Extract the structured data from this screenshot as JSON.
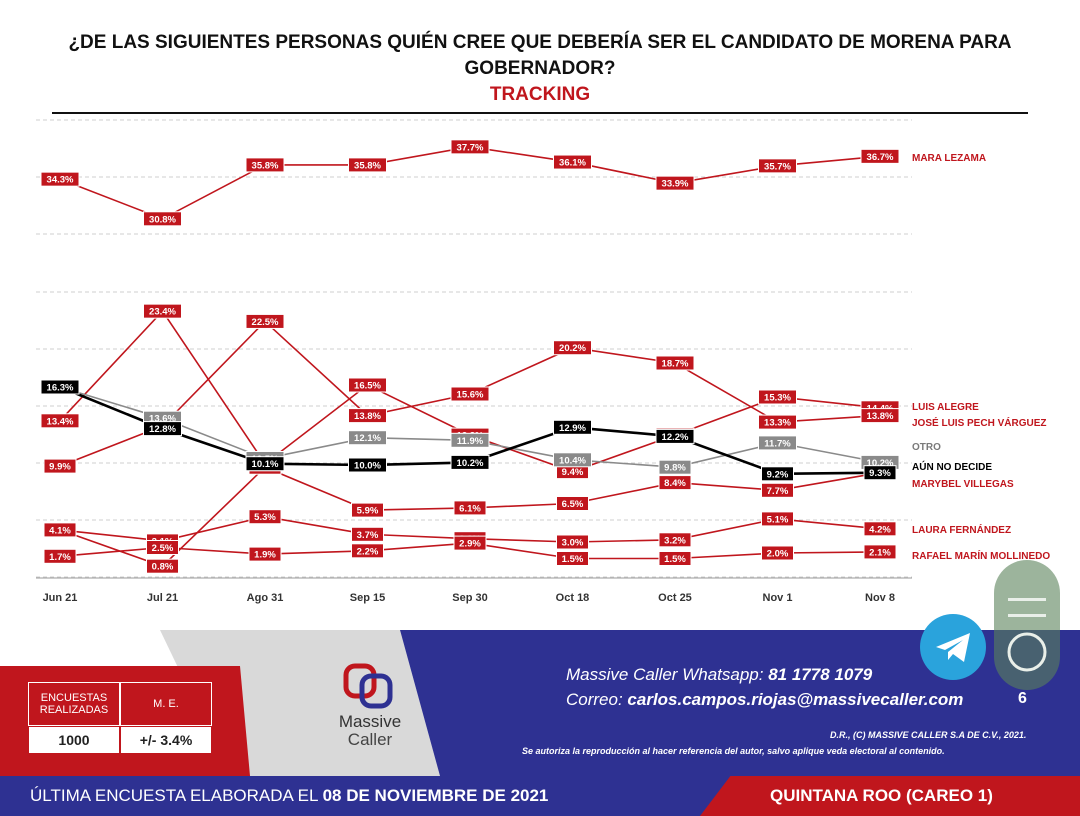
{
  "title_line1": "¿DE LAS SIGUIENTES PERSONAS QUIÉN CREE QUE DEBERÍA SER EL CANDIDATO DE MORENA PARA",
  "title_line2": "GOBERNADOR?",
  "subtitle": "TRACKING",
  "chart_data": {
    "type": "line",
    "categories": [
      "Jun 21",
      "Jul 21",
      "Ago 31",
      "Sep 15",
      "Sep 30",
      "Oct 18",
      "Oct 25",
      "Nov 1",
      "Nov 8"
    ],
    "series": [
      {
        "name": "MARA LEZAMA",
        "color": "#c0161d",
        "values": [
          34.3,
          30.8,
          35.8,
          35.8,
          37.7,
          36.1,
          33.9,
          35.7,
          36.7
        ],
        "labels": [
          "34.3%",
          "30.8%",
          "35.8%",
          "35.8%",
          "37.7%",
          "36.1%",
          "33.9%",
          "35.7%",
          "36.7%"
        ]
      },
      {
        "name": "LUIS ALEGRE",
        "color": "#c0161d",
        "values": [
          13.4,
          23.4,
          10.1,
          16.5,
          12.3,
          9.4,
          12.3,
          15.3,
          14.4
        ],
        "labels": [
          "13.4%",
          "23.4%",
          "10.1%",
          "16.5%",
          "12.3%",
          "9.4%",
          "12.3%",
          "15.3%",
          "14.4%"
        ]
      },
      {
        "name": "JOSÉ LUIS PECH VÁRGUEZ",
        "color": "#c0161d",
        "values": [
          9.9,
          13.0,
          22.5,
          13.8,
          15.6,
          20.2,
          18.7,
          13.3,
          13.8
        ],
        "labels": [
          "9.9%",
          "13.0%",
          "22.5%",
          "13.8%",
          "15.6%",
          "20.2%",
          "18.7%",
          "13.3%",
          "13.8%"
        ]
      },
      {
        "name": "OTRO",
        "color": "#8a8a8a",
        "values": [
          16.3,
          13.6,
          10.5,
          12.1,
          11.9,
          10.4,
          9.8,
          11.7,
          10.2
        ],
        "labels": [
          "16.3%",
          "13.6%",
          "10.5%",
          "12.1%",
          "11.9%",
          "10.4%",
          "9.8%",
          "11.7%",
          "10.2%"
        ]
      },
      {
        "name": "AÚN NO DECIDE",
        "color": "#000000",
        "values": [
          16.3,
          12.8,
          10.1,
          10.0,
          10.2,
          12.9,
          12.2,
          9.2,
          9.3
        ],
        "labels": [
          "16.3%",
          "12.8%",
          "10.1%",
          "10.0%",
          "10.2%",
          "12.9%",
          "12.2%",
          "9.2%",
          "9.3%"
        ]
      },
      {
        "name": "MARYBEL VILLEGAS",
        "color": "#c0161d",
        "values": [
          4.1,
          0.8,
          9.8,
          5.9,
          6.1,
          6.5,
          8.4,
          7.7,
          9.3
        ],
        "labels": [
          "4.1%",
          "0.8%",
          "9.8%",
          "5.9%",
          "6.1%",
          "6.5%",
          "8.4%",
          "7.7%",
          "9.3%"
        ]
      },
      {
        "name": "LAURA FERNÁNDEZ",
        "color": "#c0161d",
        "values": [
          4.1,
          3.1,
          5.3,
          3.7,
          3.3,
          3.0,
          3.2,
          5.1,
          4.2
        ],
        "labels": [
          "4.1%",
          "3.1%",
          "5.3%",
          "3.7%",
          "3.3%",
          "3.0%",
          "3.2%",
          "5.1%",
          "4.2%"
        ]
      },
      {
        "name": "RAFAEL MARÍN MOLLINEDO",
        "color": "#c0161d",
        "values": [
          1.7,
          2.5,
          1.9,
          2.2,
          2.9,
          1.5,
          1.5,
          2.0,
          2.1
        ],
        "labels": [
          "1.7%",
          "2.5%",
          "1.9%",
          "2.2%",
          "2.9%",
          "1.5%",
          "1.5%",
          "2.0%",
          "2.1%"
        ]
      }
    ],
    "grid": true,
    "legend": "right"
  },
  "footer": {
    "box_header_1": "ENCUESTAS REALIZADAS",
    "box_header_2": "M. E.",
    "box_value_1": "1000",
    "box_value_2": "+/- 3.4%",
    "logo_line1": "Massive",
    "logo_line2": "Caller",
    "whatsapp_label": "Massive Caller Whatsapp:",
    "whatsapp_number": "81 1778 1079",
    "email_label": "Correo:",
    "email": "carlos.campos.riojas@massivecaller.com",
    "page_number": "6",
    "copyright": "D.R., (C) MASSIVE CALLER S.A DE C.V., 2021.",
    "note": "Se autoriza la reproducción al hacer referencia del autor, salvo aplique veda electoral al contenido.",
    "last_survey_label": "ÚLTIMA ENCUESTA ELABORADA EL",
    "last_survey_date": "08 DE NOVIEMBRE DE 2021",
    "region": "QUINTANA ROO (CAREO 1)"
  },
  "colors": {
    "red": "#c0161d",
    "navy": "#2e3192",
    "gray": "#8a8a8a",
    "black": "#000000"
  }
}
